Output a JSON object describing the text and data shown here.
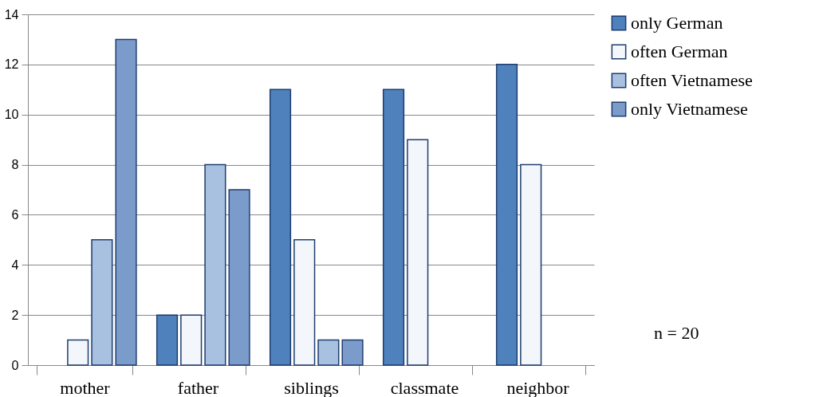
{
  "chart_data": {
    "type": "bar",
    "categories": [
      "mother",
      "father",
      "siblings",
      "classmate",
      "neighbor"
    ],
    "series": [
      {
        "name": "only German",
        "color": "#4f81bd",
        "values": [
          null,
          2,
          11,
          11,
          12
        ]
      },
      {
        "name": "often German",
        "color": "#f3f6fb",
        "values": [
          1,
          2,
          5,
          9,
          8
        ]
      },
      {
        "name": "often Vietnamese",
        "color": "#a9c1e0",
        "values": [
          5,
          8,
          1,
          null,
          null
        ]
      },
      {
        "name": "only Vietnamese",
        "color": "#7b9ccb",
        "values": [
          13,
          7,
          1,
          null,
          null
        ]
      }
    ],
    "ylim": [
      0,
      14
    ],
    "yticks": [
      0,
      2,
      4,
      6,
      8,
      10,
      12,
      14
    ],
    "grid": "y",
    "legend": "right",
    "annotations": [
      "n = 20"
    ]
  }
}
